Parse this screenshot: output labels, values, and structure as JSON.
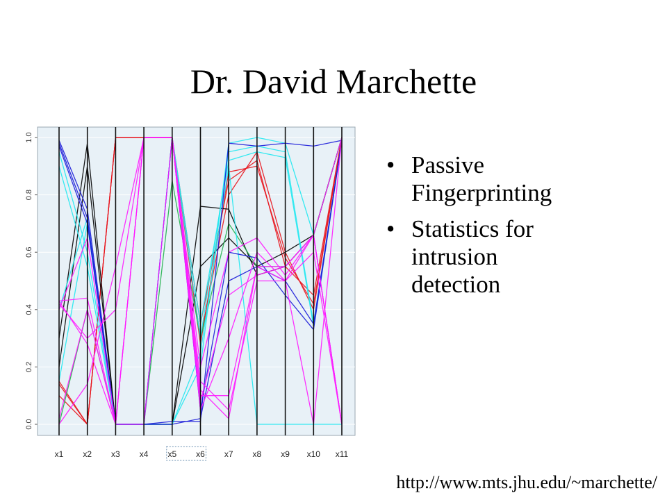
{
  "slide": {
    "title": "Dr. David Marchette",
    "bullets": [
      "Passive Fingerprinting",
      "Statistics for intrusion detection"
    ],
    "url": "http://www.mts.jhu.edu/~marchette/"
  },
  "chart_data": {
    "type": "line",
    "subtype": "parallel-coordinates",
    "title": "",
    "xlabel": "",
    "ylabel": "",
    "ylim": [
      0,
      1
    ],
    "y_ticks": [
      "0.0",
      "0.2",
      "0.4",
      "0.6",
      "0.8",
      "1.0"
    ],
    "axes": [
      "x1",
      "x2",
      "x3",
      "x4",
      "x5",
      "x6",
      "x7",
      "x8",
      "x9",
      "x10",
      "x11"
    ],
    "grid": true,
    "background": "#e8f1f7",
    "colors": {
      "red": "#e8141c",
      "black": "#000000",
      "green": "#22b14c",
      "cyan": "#20e8f0",
      "blue": "#1a1ad8",
      "magenta": "#ff1aff"
    },
    "series": [
      {
        "color": "red",
        "values": [
          0.14,
          0.0,
          1.0,
          1.0,
          1.0,
          0.35,
          0.85,
          0.92,
          0.55,
          0.45,
          1.0
        ]
      },
      {
        "color": "red",
        "values": [
          0.15,
          0.0,
          1.0,
          1.0,
          1.0,
          0.3,
          0.8,
          0.95,
          0.6,
          0.4,
          1.0
        ]
      },
      {
        "color": "red",
        "values": [
          0.1,
          0.0,
          1.0,
          1.0,
          1.0,
          0.28,
          0.88,
          0.9,
          0.58,
          0.42,
          1.0
        ]
      },
      {
        "color": "black",
        "values": [
          0.3,
          0.98,
          0.0,
          0.0,
          0.0,
          0.76,
          0.75,
          0.52,
          0.55,
          0.66,
          1.0
        ]
      },
      {
        "color": "black",
        "values": [
          0.2,
          0.9,
          0.0,
          0.0,
          0.0,
          0.55,
          0.65,
          0.55,
          0.6,
          0.66,
          1.0
        ]
      },
      {
        "color": "green",
        "values": [
          0.0,
          0.4,
          0.0,
          0.0,
          0.85,
          0.3,
          0.7,
          0.55,
          0.55,
          0.66,
          1.0
        ]
      },
      {
        "color": "cyan",
        "values": [
          0.15,
          0.7,
          0.0,
          0.0,
          0.0,
          0.2,
          0.98,
          1.0,
          0.98,
          0.66,
          0.0
        ]
      },
      {
        "color": "cyan",
        "values": [
          0.4,
          0.72,
          0.0,
          0.0,
          0.0,
          0.25,
          0.9,
          0.0,
          0.0,
          0.0,
          0.0
        ]
      },
      {
        "color": "cyan",
        "values": [
          0.95,
          0.6,
          0.0,
          0.0,
          1.0,
          0.3,
          0.95,
          0.97,
          0.95,
          0.35,
          0.99
        ]
      },
      {
        "color": "cyan",
        "values": [
          0.9,
          0.55,
          0.0,
          0.0,
          1.0,
          0.35,
          0.92,
          0.95,
          0.93,
          0.34,
          0.99
        ]
      },
      {
        "color": "blue",
        "values": [
          0.99,
          0.75,
          0.0,
          0.0,
          0.01,
          0.01,
          0.98,
          0.97,
          0.98,
          0.97,
          0.99
        ]
      },
      {
        "color": "blue",
        "values": [
          0.98,
          0.72,
          0.0,
          0.0,
          0.0,
          0.02,
          0.5,
          0.55,
          0.5,
          0.35,
          0.99
        ]
      },
      {
        "color": "blue",
        "values": [
          0.97,
          0.7,
          0.0,
          0.0,
          1.0,
          0.05,
          0.6,
          0.58,
          0.45,
          0.33,
          0.99
        ]
      },
      {
        "color": "magenta",
        "values": [
          0.43,
          0.44,
          0.0,
          1.0,
          1.0,
          0.15,
          0.05,
          0.5,
          0.5,
          0.66,
          0.0
        ]
      },
      {
        "color": "magenta",
        "values": [
          0.0,
          0.14,
          0.55,
          1.0,
          1.0,
          0.1,
          0.1,
          0.55,
          0.55,
          0.66,
          0.0
        ]
      },
      {
        "color": "magenta",
        "values": [
          0.43,
          0.28,
          0.0,
          1.0,
          1.0,
          0.05,
          0.3,
          0.6,
          0.5,
          0.6,
          0.0
        ]
      },
      {
        "color": "magenta",
        "values": [
          0.02,
          0.4,
          0.0,
          0.0,
          1.0,
          0.2,
          0.6,
          0.65,
          0.52,
          0.66,
          1.0
        ]
      },
      {
        "color": "magenta",
        "values": [
          0.4,
          0.65,
          0.0,
          1.0,
          1.0,
          0.08,
          0.45,
          0.52,
          0.55,
          0.66,
          0.0
        ]
      },
      {
        "color": "magenta",
        "values": [
          0.42,
          0.3,
          0.4,
          1.0,
          1.0,
          0.12,
          0.02,
          0.55,
          0.5,
          0.0,
          1.0
        ]
      }
    ]
  }
}
